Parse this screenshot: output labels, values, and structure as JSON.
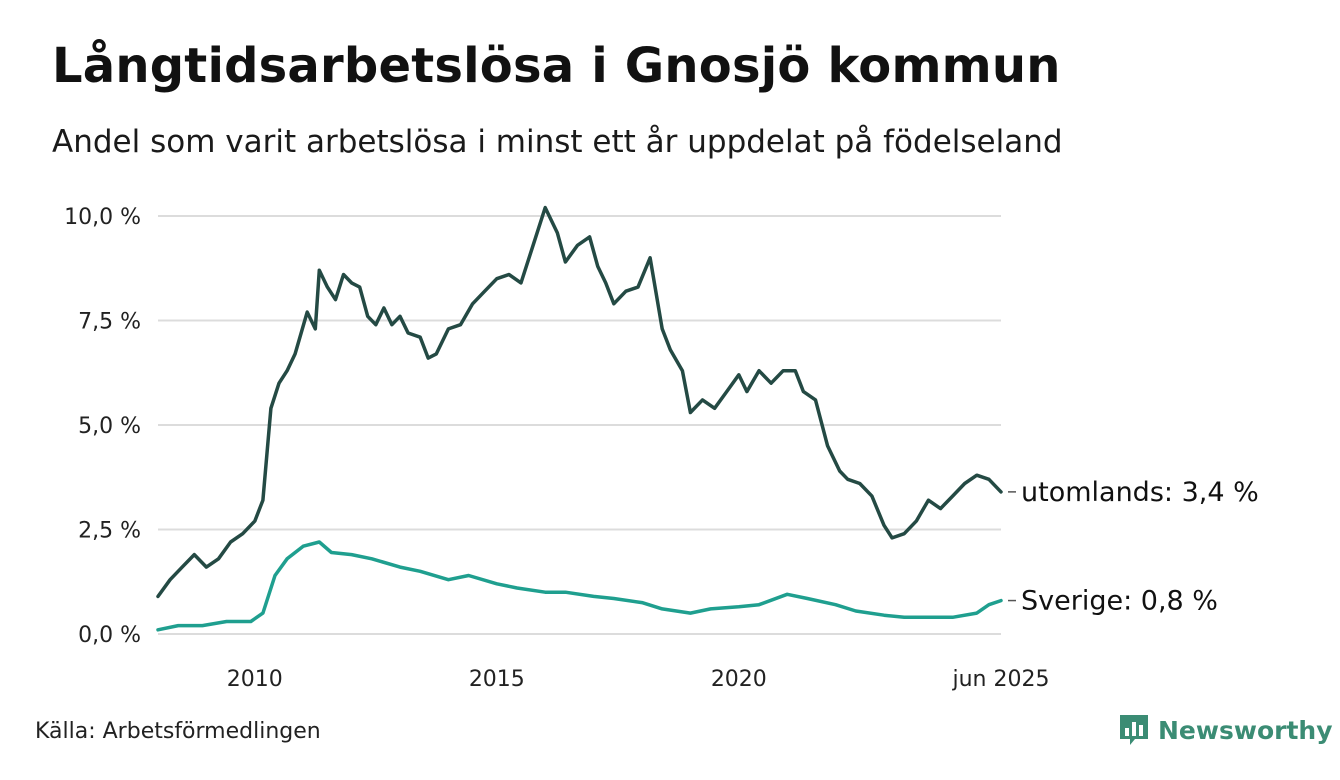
{
  "header": {
    "title": "Långtidsarbetslösa i Gnosjö kommun",
    "subtitle": "Andel som varit arbetslösa i minst ett år uppdelat på födelseland"
  },
  "footer": {
    "source": "Källa: Arbetsförmedlingen",
    "brand": "Newsworthy",
    "brand_icon": "newsworthy-logo-icon"
  },
  "colors": {
    "utomlands": "#244a44",
    "sverige": "#1f9f8f",
    "grid": "#dcdcdc",
    "brand": "#3b8c74"
  },
  "chart_data": {
    "type": "line",
    "title": "Långtidsarbetslösa i Gnosjö kommun",
    "subtitle": "Andel som varit arbetslösa i minst ett år uppdelat på födelseland",
    "ylim": [
      0,
      10
    ],
    "y_ticks": [
      0,
      2.5,
      5,
      7.5,
      10
    ],
    "y_tick_labels": [
      "0,0 %",
      "2,5 %",
      "5,0 %",
      "7,5 %",
      "10,0 %"
    ],
    "x_range": [
      "2008-01",
      "2025-06"
    ],
    "x_ticks": [
      "2010-01",
      "2015-01",
      "2020-01",
      "2025-06"
    ],
    "x_tick_labels": [
      "2010",
      "2015",
      "2020",
      "jun 2025"
    ],
    "grid": "horizontal",
    "end_labels": [
      "utomlands: 3,4 %",
      "Sverige: 0,8 %"
    ],
    "series": [
      {
        "name": "utomlands",
        "points": [
          [
            "2008-01",
            0.9
          ],
          [
            "2008-04",
            1.3
          ],
          [
            "2008-07",
            1.6
          ],
          [
            "2008-10",
            1.9
          ],
          [
            "2009-01",
            1.6
          ],
          [
            "2009-04",
            1.8
          ],
          [
            "2009-07",
            2.2
          ],
          [
            "2009-10",
            2.4
          ],
          [
            "2010-01",
            2.7
          ],
          [
            "2010-03",
            3.2
          ],
          [
            "2010-05",
            5.4
          ],
          [
            "2010-07",
            6.0
          ],
          [
            "2010-09",
            6.3
          ],
          [
            "2010-11",
            6.7
          ],
          [
            "2011-02",
            7.7
          ],
          [
            "2011-04",
            7.3
          ],
          [
            "2011-05",
            8.7
          ],
          [
            "2011-07",
            8.3
          ],
          [
            "2011-09",
            8.0
          ],
          [
            "2011-11",
            8.6
          ],
          [
            "2012-01",
            8.4
          ],
          [
            "2012-03",
            8.3
          ],
          [
            "2012-05",
            7.6
          ],
          [
            "2012-07",
            7.4
          ],
          [
            "2012-09",
            7.8
          ],
          [
            "2012-11",
            7.4
          ],
          [
            "2013-01",
            7.6
          ],
          [
            "2013-03",
            7.2
          ],
          [
            "2013-06",
            7.1
          ],
          [
            "2013-08",
            6.6
          ],
          [
            "2013-10",
            6.7
          ],
          [
            "2014-01",
            7.3
          ],
          [
            "2014-04",
            7.4
          ],
          [
            "2014-07",
            7.9
          ],
          [
            "2014-10",
            8.2
          ],
          [
            "2015-01",
            8.5
          ],
          [
            "2015-04",
            8.6
          ],
          [
            "2015-07",
            8.4
          ],
          [
            "2015-10",
            9.3
          ],
          [
            "2016-01",
            10.2
          ],
          [
            "2016-04",
            9.6
          ],
          [
            "2016-06",
            8.9
          ],
          [
            "2016-09",
            9.3
          ],
          [
            "2016-12",
            9.5
          ],
          [
            "2017-02",
            8.8
          ],
          [
            "2017-04",
            8.4
          ],
          [
            "2017-06",
            7.9
          ],
          [
            "2017-09",
            8.2
          ],
          [
            "2017-12",
            8.3
          ],
          [
            "2018-03",
            9.0
          ],
          [
            "2018-06",
            7.3
          ],
          [
            "2018-08",
            6.8
          ],
          [
            "2018-11",
            6.3
          ],
          [
            "2019-01",
            5.3
          ],
          [
            "2019-04",
            5.6
          ],
          [
            "2019-07",
            5.4
          ],
          [
            "2019-10",
            5.8
          ],
          [
            "2020-01",
            6.2
          ],
          [
            "2020-03",
            5.8
          ],
          [
            "2020-06",
            6.3
          ],
          [
            "2020-09",
            6.0
          ],
          [
            "2020-12",
            6.3
          ],
          [
            "2021-03",
            6.3
          ],
          [
            "2021-05",
            5.8
          ],
          [
            "2021-08",
            5.6
          ],
          [
            "2021-11",
            4.5
          ],
          [
            "2022-02",
            3.9
          ],
          [
            "2022-04",
            3.7
          ],
          [
            "2022-07",
            3.6
          ],
          [
            "2022-10",
            3.3
          ],
          [
            "2023-01",
            2.6
          ],
          [
            "2023-03",
            2.3
          ],
          [
            "2023-06",
            2.4
          ],
          [
            "2023-09",
            2.7
          ],
          [
            "2023-12",
            3.2
          ],
          [
            "2024-03",
            3.0
          ],
          [
            "2024-06",
            3.3
          ],
          [
            "2024-09",
            3.6
          ],
          [
            "2024-12",
            3.8
          ],
          [
            "2025-03",
            3.7
          ],
          [
            "2025-06",
            3.4
          ]
        ]
      },
      {
        "name": "Sverige",
        "points": [
          [
            "2008-01",
            0.1
          ],
          [
            "2008-06",
            0.2
          ],
          [
            "2008-12",
            0.2
          ],
          [
            "2009-06",
            0.3
          ],
          [
            "2009-12",
            0.3
          ],
          [
            "2010-03",
            0.5
          ],
          [
            "2010-06",
            1.4
          ],
          [
            "2010-09",
            1.8
          ],
          [
            "2011-01",
            2.1
          ],
          [
            "2011-05",
            2.2
          ],
          [
            "2011-08",
            1.95
          ],
          [
            "2012-01",
            1.9
          ],
          [
            "2012-06",
            1.8
          ],
          [
            "2013-01",
            1.6
          ],
          [
            "2013-06",
            1.5
          ],
          [
            "2014-01",
            1.3
          ],
          [
            "2014-06",
            1.4
          ],
          [
            "2015-01",
            1.2
          ],
          [
            "2015-06",
            1.1
          ],
          [
            "2016-01",
            1.0
          ],
          [
            "2016-06",
            1.0
          ],
          [
            "2017-01",
            0.9
          ],
          [
            "2017-06",
            0.85
          ],
          [
            "2018-01",
            0.75
          ],
          [
            "2018-06",
            0.6
          ],
          [
            "2019-01",
            0.5
          ],
          [
            "2019-06",
            0.6
          ],
          [
            "2020-01",
            0.65
          ],
          [
            "2020-06",
            0.7
          ],
          [
            "2021-01",
            0.95
          ],
          [
            "2021-06",
            0.85
          ],
          [
            "2022-01",
            0.7
          ],
          [
            "2022-06",
            0.55
          ],
          [
            "2023-01",
            0.45
          ],
          [
            "2023-06",
            0.4
          ],
          [
            "2024-01",
            0.4
          ],
          [
            "2024-06",
            0.4
          ],
          [
            "2024-12",
            0.5
          ],
          [
            "2025-03",
            0.7
          ],
          [
            "2025-06",
            0.8
          ]
        ]
      }
    ]
  }
}
